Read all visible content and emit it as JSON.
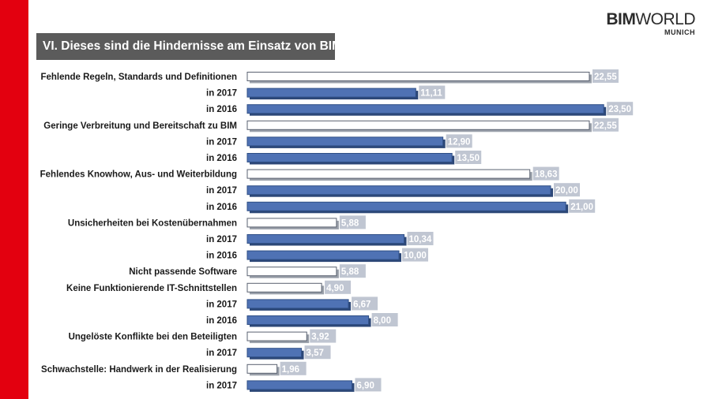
{
  "header": {
    "title": "VI. Dieses sind die Hindernisse am Einsatz von BIM.",
    "logo_bold": "BIM",
    "logo_light": "WORLD",
    "logo_sub": "MUNICH"
  },
  "colors": {
    "accent_red": "#e3000f",
    "bar_year": "#4f72b4",
    "bar_total": "#ffffff",
    "label_bg": "#c0c6d2"
  },
  "chart_data": {
    "type": "bar",
    "orientation": "horizontal",
    "title": "VI. Dieses sind die Hindernisse am Einsatz von BIM.",
    "xlim": [
      0,
      25
    ],
    "grid": false,
    "categories": [
      "Fehlende Regeln, Standards und Definitionen",
      "in 2017",
      "in 2016",
      "Geringe Verbreitung und Bereitschaft zu BIM",
      "in 2017",
      "in 2016",
      "Fehlendes Knowhow, Aus- und Weiterbildung",
      "in 2017",
      "in 2016",
      "Unsicherheiten bei Kostenübernahmen",
      "in 2017",
      "in 2016",
      "Nicht passende Software",
      "Keine Funktionierende IT-Schnittstellen",
      "in 2017",
      "in 2016",
      "Ungelöste Konflikte bei den Beteiligten",
      "in 2017",
      "Schwachstelle: Handwerk in der Realisierung",
      "in 2017"
    ],
    "values": [
      22.55,
      11.11,
      23.5,
      22.55,
      12.9,
      13.5,
      18.63,
      20.0,
      21.0,
      5.88,
      10.34,
      10.0,
      5.88,
      4.9,
      6.67,
      8.0,
      3.92,
      3.57,
      1.96,
      6.9
    ],
    "value_labels": [
      "22,55",
      "11,11",
      "23,50",
      "22,55",
      "12,90",
      "13,50",
      "18,63",
      "20,00",
      "21,00",
      "5,88",
      "10,34",
      "10,00",
      "5,88",
      "4,90",
      "6,67",
      "8,00",
      "3,92",
      "3,57",
      "1,96",
      "6,90"
    ],
    "kinds": [
      "total",
      "year",
      "year",
      "total",
      "year",
      "year",
      "total",
      "year",
      "year",
      "total",
      "year",
      "year",
      "total",
      "total",
      "year",
      "year",
      "total",
      "year",
      "total",
      "year"
    ]
  }
}
